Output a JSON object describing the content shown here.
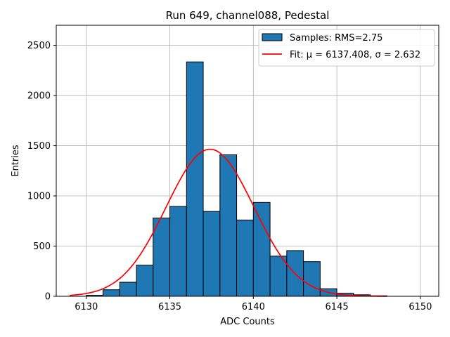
{
  "chart_data": {
    "type": "bar",
    "title": "Run 649, channel088, Pedestal",
    "xlabel": "ADC Counts",
    "ylabel": "Entries",
    "xlim": [
      6128.2,
      6151.1
    ],
    "ylim": [
      0,
      2700
    ],
    "xticks": [
      6130,
      6135,
      6140,
      6145,
      6150
    ],
    "yticks": [
      0,
      500,
      1000,
      1500,
      2000,
      2500
    ],
    "grid": true,
    "legend_position": "top-right",
    "histogram": {
      "name": "Samples: RMS=2.75",
      "color": "#1f77b4",
      "bins": [
        {
          "x0": 6129,
          "x1": 6130,
          "count": 0
        },
        {
          "x0": 6130,
          "x1": 6131,
          "count": 10
        },
        {
          "x0": 6131,
          "x1": 6132,
          "count": 65
        },
        {
          "x0": 6132,
          "x1": 6133,
          "count": 140
        },
        {
          "x0": 6133,
          "x1": 6134,
          "count": 310
        },
        {
          "x0": 6134,
          "x1": 6135,
          "count": 780
        },
        {
          "x0": 6135,
          "x1": 6136,
          "count": 895
        },
        {
          "x0": 6136,
          "x1": 6137,
          "count": 2335
        },
        {
          "x0": 6137,
          "x1": 6138,
          "count": 845
        },
        {
          "x0": 6138,
          "x1": 6139,
          "count": 1410
        },
        {
          "x0": 6139,
          "x1": 6140,
          "count": 760
        },
        {
          "x0": 6140,
          "x1": 6141,
          "count": 935
        },
        {
          "x0": 6141,
          "x1": 6142,
          "count": 400
        },
        {
          "x0": 6142,
          "x1": 6143,
          "count": 455
        },
        {
          "x0": 6143,
          "x1": 6144,
          "count": 345
        },
        {
          "x0": 6144,
          "x1": 6145,
          "count": 75
        },
        {
          "x0": 6145,
          "x1": 6146,
          "count": 30
        },
        {
          "x0": 6146,
          "x1": 6147,
          "count": 15
        },
        {
          "x0": 6147,
          "x1": 6148,
          "count": 5
        }
      ]
    },
    "fit": {
      "name": "Fit: μ = 6137.408, σ = 2.632",
      "color": "#ff0000",
      "mu": 6137.408,
      "sigma": 2.632,
      "amplitude": 1465,
      "x_range": [
        6129,
        6148
      ]
    }
  }
}
